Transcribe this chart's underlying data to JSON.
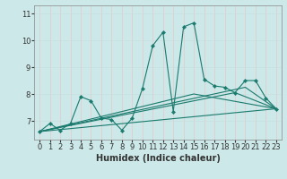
{
  "xlabel": "Humidex (Indice chaleur)",
  "bg_color": "#cce8e8",
  "line_color": "#1a7a6e",
  "grid_color_v": "#e8c8c8",
  "grid_color_h": "#c8dede",
  "xlim": [
    -0.5,
    23.5
  ],
  "ylim": [
    6.3,
    11.3
  ],
  "yticks": [
    7,
    8,
    9,
    10,
    11
  ],
  "xticks": [
    0,
    1,
    2,
    3,
    4,
    5,
    6,
    7,
    8,
    9,
    10,
    11,
    12,
    13,
    14,
    15,
    16,
    17,
    18,
    19,
    20,
    21,
    22,
    23
  ],
  "main_line": {
    "x": [
      0,
      1,
      2,
      3,
      4,
      5,
      6,
      7,
      8,
      9,
      10,
      11,
      12,
      13,
      14,
      15,
      16,
      17,
      18,
      19,
      20,
      21,
      22,
      23
    ],
    "y": [
      6.6,
      6.9,
      6.65,
      6.9,
      7.9,
      7.75,
      7.1,
      7.05,
      6.65,
      7.1,
      8.2,
      9.8,
      10.3,
      7.35,
      10.5,
      10.65,
      8.55,
      8.3,
      8.25,
      8.05,
      8.5,
      8.5,
      7.85,
      7.45
    ]
  },
  "extra_lines": [
    {
      "x": [
        0,
        23
      ],
      "y": [
        6.6,
        7.45
      ]
    },
    {
      "x": [
        0,
        19,
        23
      ],
      "y": [
        6.6,
        8.05,
        7.45
      ]
    },
    {
      "x": [
        0,
        20,
        23
      ],
      "y": [
        6.6,
        8.25,
        7.45
      ]
    },
    {
      "x": [
        0,
        15,
        23
      ],
      "y": [
        6.6,
        8.0,
        7.45
      ]
    }
  ],
  "xlabel_fontsize": 7,
  "tick_labelsize": 6,
  "spine_color": "#888888",
  "tick_color": "#333333"
}
